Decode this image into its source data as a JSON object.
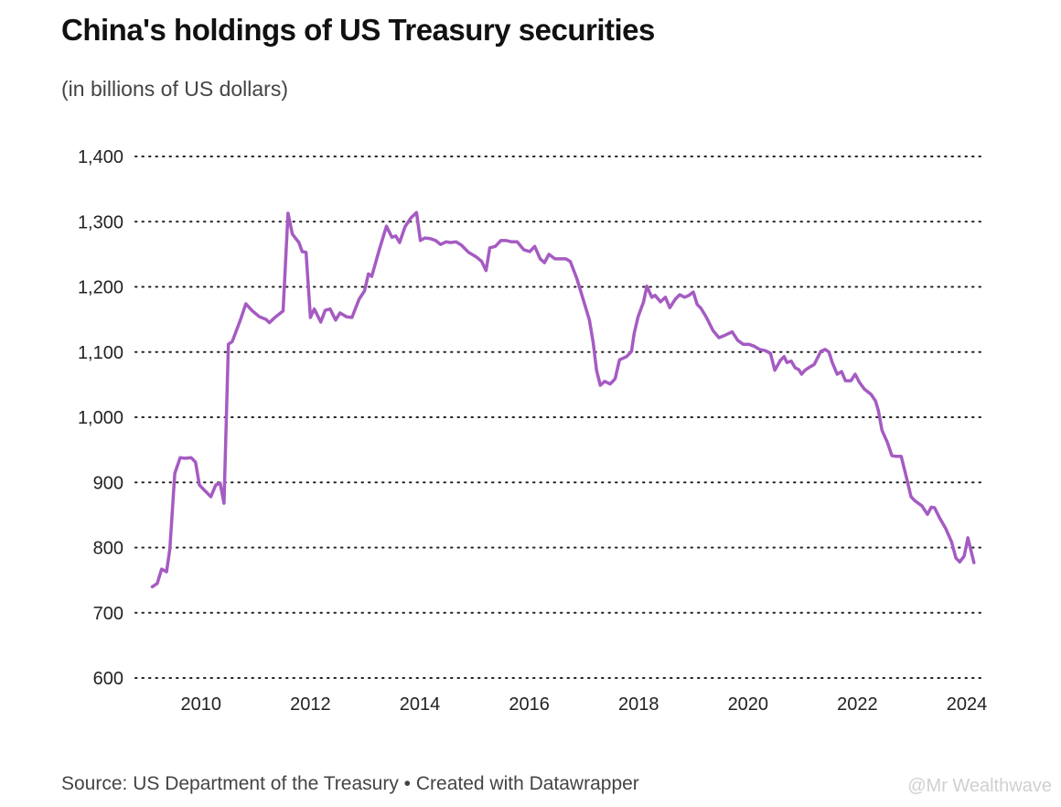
{
  "chart_data": {
    "type": "line",
    "title": "China's holdings of US Treasury securities",
    "subtitle": "(in billions of US dollars)",
    "source": "Source: US Department of the Treasury • Created with Datawrapper",
    "xlabel": "",
    "ylabel": "",
    "xlim": [
      2008.8,
      2024.25
    ],
    "ylim": [
      600,
      1400
    ],
    "grid": true,
    "legend": "none",
    "line_color": "#a55bc2",
    "x_ticks": [
      "2010",
      "2012",
      "2014",
      "2016",
      "2018",
      "2020",
      "2022",
      "2024"
    ],
    "y_ticks": [
      "600",
      "700",
      "800",
      "900",
      "1,000",
      "1,100",
      "1,200",
      "1,300",
      "1,400"
    ],
    "series": [
      {
        "points": [
          [
            2009.11,
            740
          ],
          [
            2009.2,
            745
          ],
          [
            2009.28,
            767
          ],
          [
            2009.37,
            763
          ],
          [
            2009.43,
            798
          ],
          [
            2009.52,
            914
          ],
          [
            2009.62,
            938
          ],
          [
            2009.7,
            937
          ],
          [
            2009.82,
            938
          ],
          [
            2009.9,
            931
          ],
          [
            2009.97,
            896
          ],
          [
            2010.05,
            889
          ],
          [
            2010.18,
            878
          ],
          [
            2010.27,
            896
          ],
          [
            2010.35,
            899
          ],
          [
            2010.42,
            868
          ],
          [
            2010.5,
            1112
          ],
          [
            2010.57,
            1116
          ],
          [
            2010.72,
            1149
          ],
          [
            2010.82,
            1174
          ],
          [
            2010.94,
            1163
          ],
          [
            2011.07,
            1154
          ],
          [
            2011.19,
            1150
          ],
          [
            2011.25,
            1145
          ],
          [
            2011.35,
            1153
          ],
          [
            2011.5,
            1163
          ],
          [
            2011.59,
            1313
          ],
          [
            2011.67,
            1281
          ],
          [
            2011.79,
            1268
          ],
          [
            2011.85,
            1254
          ],
          [
            2011.92,
            1253
          ],
          [
            2012.0,
            1153
          ],
          [
            2012.07,
            1166
          ],
          [
            2012.19,
            1146
          ],
          [
            2012.27,
            1164
          ],
          [
            2012.36,
            1166
          ],
          [
            2012.46,
            1149
          ],
          [
            2012.54,
            1160
          ],
          [
            2012.66,
            1154
          ],
          [
            2012.76,
            1153
          ],
          [
            2012.89,
            1181
          ],
          [
            2012.99,
            1194
          ],
          [
            2013.06,
            1220
          ],
          [
            2013.12,
            1216
          ],
          [
            2013.26,
            1257
          ],
          [
            2013.39,
            1293
          ],
          [
            2013.49,
            1276
          ],
          [
            2013.56,
            1278
          ],
          [
            2013.63,
            1268
          ],
          [
            2013.73,
            1292
          ],
          [
            2013.84,
            1306
          ],
          [
            2013.94,
            1314
          ],
          [
            2014.01,
            1271
          ],
          [
            2014.09,
            1275
          ],
          [
            2014.19,
            1274
          ],
          [
            2014.29,
            1271
          ],
          [
            2014.38,
            1265
          ],
          [
            2014.48,
            1269
          ],
          [
            2014.56,
            1268
          ],
          [
            2014.66,
            1269
          ],
          [
            2014.76,
            1264
          ],
          [
            2014.89,
            1253
          ],
          [
            2015.03,
            1246
          ],
          [
            2015.13,
            1239
          ],
          [
            2015.21,
            1225
          ],
          [
            2015.28,
            1260
          ],
          [
            2015.38,
            1262
          ],
          [
            2015.48,
            1271
          ],
          [
            2015.58,
            1271
          ],
          [
            2015.68,
            1269
          ],
          [
            2015.78,
            1269
          ],
          [
            2015.9,
            1257
          ],
          [
            2016.01,
            1254
          ],
          [
            2016.1,
            1262
          ],
          [
            2016.2,
            1243
          ],
          [
            2016.28,
            1237
          ],
          [
            2016.36,
            1250
          ],
          [
            2016.47,
            1243
          ],
          [
            2016.57,
            1243
          ],
          [
            2016.67,
            1243
          ],
          [
            2016.75,
            1239
          ],
          [
            2016.87,
            1213
          ],
          [
            2017.0,
            1177
          ],
          [
            2017.1,
            1149
          ],
          [
            2017.17,
            1114
          ],
          [
            2017.23,
            1072
          ],
          [
            2017.3,
            1049
          ],
          [
            2017.38,
            1055
          ],
          [
            2017.48,
            1051
          ],
          [
            2017.57,
            1059
          ],
          [
            2017.65,
            1088
          ],
          [
            2017.78,
            1093
          ],
          [
            2017.87,
            1101
          ],
          [
            2017.92,
            1129
          ],
          [
            2017.99,
            1154
          ],
          [
            2018.09,
            1177
          ],
          [
            2018.15,
            1201
          ],
          [
            2018.24,
            1184
          ],
          [
            2018.3,
            1187
          ],
          [
            2018.4,
            1177
          ],
          [
            2018.49,
            1184
          ],
          [
            2018.57,
            1168
          ],
          [
            2018.67,
            1181
          ],
          [
            2018.75,
            1188
          ],
          [
            2018.84,
            1184
          ],
          [
            2018.92,
            1187
          ],
          [
            2019.0,
            1192
          ],
          [
            2019.07,
            1173
          ],
          [
            2019.14,
            1167
          ],
          [
            2019.24,
            1153
          ],
          [
            2019.36,
            1133
          ],
          [
            2019.47,
            1122
          ],
          [
            2019.56,
            1125
          ],
          [
            2019.71,
            1131
          ],
          [
            2019.81,
            1118
          ],
          [
            2019.91,
            1112
          ],
          [
            2020.01,
            1112
          ],
          [
            2020.11,
            1109
          ],
          [
            2020.21,
            1104
          ],
          [
            2020.32,
            1102
          ],
          [
            2020.41,
            1098
          ],
          [
            2020.49,
            1072
          ],
          [
            2020.59,
            1087
          ],
          [
            2020.66,
            1093
          ],
          [
            2020.71,
            1084
          ],
          [
            2020.79,
            1086
          ],
          [
            2020.86,
            1076
          ],
          [
            2020.93,
            1073
          ],
          [
            2020.98,
            1066
          ],
          [
            2021.04,
            1072
          ],
          [
            2021.13,
            1077
          ],
          [
            2021.21,
            1081
          ],
          [
            2021.33,
            1101
          ],
          [
            2021.41,
            1104
          ],
          [
            2021.48,
            1100
          ],
          [
            2021.54,
            1084
          ],
          [
            2021.63,
            1066
          ],
          [
            2021.71,
            1070
          ],
          [
            2021.78,
            1056
          ],
          [
            2021.88,
            1056
          ],
          [
            2021.96,
            1066
          ],
          [
            2022.04,
            1053
          ],
          [
            2022.13,
            1043
          ],
          [
            2022.25,
            1035
          ],
          [
            2022.33,
            1025
          ],
          [
            2022.38,
            1011
          ],
          [
            2022.45,
            980
          ],
          [
            2022.55,
            961
          ],
          [
            2022.63,
            941
          ],
          [
            2022.71,
            940
          ],
          [
            2022.8,
            940
          ],
          [
            2022.9,
            906
          ],
          [
            2022.98,
            878
          ],
          [
            2023.05,
            872
          ],
          [
            2023.18,
            864
          ],
          [
            2023.28,
            851
          ],
          [
            2023.35,
            862
          ],
          [
            2023.41,
            861
          ],
          [
            2023.5,
            846
          ],
          [
            2023.61,
            830
          ],
          [
            2023.72,
            809
          ],
          [
            2023.8,
            784
          ],
          [
            2023.87,
            778
          ],
          [
            2023.95,
            787
          ],
          [
            2024.02,
            815
          ],
          [
            2024.13,
            777
          ]
        ]
      }
    ]
  },
  "watermark": "@Mr Wealthwave"
}
